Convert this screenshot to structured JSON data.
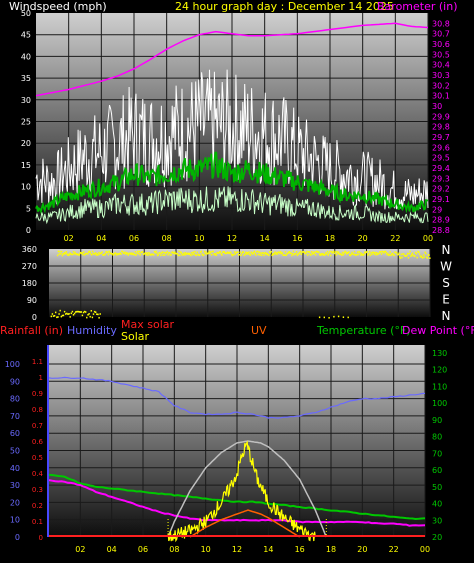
{
  "title": "24 hour graph day : December 14 2025",
  "colors": {
    "background": "#000000",
    "panel_top": "#c8c8c8",
    "panel_bottom": "#101010",
    "grid": "#1a1a1a",
    "wind_gust": "#ffffff",
    "wind_avg_dark": "#00b400",
    "wind_avg_light": "#c8ffc8",
    "barometer": "#ff00ff",
    "direction": "#ffff00",
    "rain": "#ff2020",
    "humidity": "#6a6aff",
    "max_solar": "#c0c0c0",
    "solar": "#ffff00",
    "uv": "#ff6000",
    "temperature": "#00c800",
    "dewpoint": "#ff00ff",
    "label_white": "#ffffff",
    "label_yellow": "#ffff00"
  },
  "chart_data": [
    {
      "type": "line",
      "id": "wind_baro",
      "title": "24 hour graph day : December 14 2025",
      "ylabel_left": "Windspeed (mph)",
      "ylabel_right": "Barometer (in)",
      "x_ticks": [
        "02",
        "04",
        "06",
        "08",
        "10",
        "12",
        "14",
        "16",
        "18",
        "20",
        "22",
        "00"
      ],
      "y_left_ticks": [
        "0",
        "5",
        "10",
        "15",
        "20",
        "25",
        "30",
        "35",
        "40",
        "45",
        "50"
      ],
      "y_left_range": [
        0,
        50
      ],
      "y_right_ticks": [
        "28.8",
        "28.9",
        "29",
        "29.1",
        "29.2",
        "29.3",
        "29.4",
        "29.5",
        "29.6",
        "29.7",
        "29.8",
        "29.9",
        "30",
        "30.1",
        "30.2",
        "30.3",
        "30.4",
        "30.5",
        "30.6",
        "30.7",
        "30.8"
      ],
      "y_right_range": [
        28.8,
        30.9
      ],
      "x_range_hours": [
        0,
        24
      ],
      "series": [
        {
          "color": "barometer",
          "axis": "right",
          "x": [
            0,
            1,
            2,
            3,
            4,
            5,
            6,
            7,
            8,
            9,
            10,
            11,
            12,
            13,
            14,
            15,
            16,
            17,
            18,
            19,
            20,
            21,
            22,
            23,
            24
          ],
          "y": [
            30.1,
            30.13,
            30.16,
            30.2,
            30.24,
            30.29,
            30.36,
            30.45,
            30.55,
            30.63,
            30.69,
            30.72,
            30.7,
            30.68,
            30.68,
            30.69,
            30.7,
            30.72,
            30.74,
            30.76,
            30.78,
            30.79,
            30.8,
            30.77,
            30.76
          ]
        },
        {
          "color": "wind_gust",
          "axis": "left",
          "x": [
            0,
            1,
            2,
            3,
            4,
            5,
            6,
            7,
            8,
            9,
            10,
            11,
            12,
            13,
            14,
            15,
            16,
            17,
            18,
            19,
            20,
            21,
            22,
            23,
            24
          ],
          "y": [
            12,
            11,
            14,
            17,
            18,
            20,
            22,
            21,
            22,
            23,
            24,
            24,
            24,
            23,
            22,
            21,
            18,
            16,
            14,
            13,
            12,
            11,
            9,
            8,
            9
          ]
        },
        {
          "color": "wind_avg_dark",
          "axis": "left",
          "x": [
            0,
            1,
            2,
            3,
            4,
            5,
            6,
            7,
            8,
            9,
            10,
            11,
            12,
            13,
            14,
            15,
            16,
            17,
            18,
            19,
            20,
            21,
            22,
            23,
            24
          ],
          "y": [
            5,
            6,
            8,
            9,
            10,
            11,
            13,
            12,
            13,
            14,
            14,
            15,
            13,
            14,
            13,
            12,
            11,
            10,
            9,
            8,
            8,
            7,
            6,
            5,
            6
          ]
        },
        {
          "color": "wind_avg_light",
          "axis": "left",
          "x": [
            0,
            1,
            2,
            3,
            4,
            5,
            6,
            7,
            8,
            9,
            10,
            11,
            12,
            13,
            14,
            15,
            16,
            17,
            18,
            19,
            20,
            21,
            22,
            23,
            24
          ],
          "y": [
            3,
            3,
            4,
            5,
            5,
            6,
            6,
            6,
            7,
            7,
            7,
            7,
            7,
            7,
            6,
            6,
            5,
            5,
            4,
            4,
            4,
            3,
            3,
            3,
            3
          ]
        }
      ]
    },
    {
      "type": "scatter",
      "id": "direction",
      "y_ticks": [
        "360",
        "270",
        "180",
        "90",
        "0"
      ],
      "y_range": [
        0,
        360
      ],
      "compass_labels": [
        "N",
        "W",
        "S",
        "E",
        "N"
      ],
      "x_range_hours": [
        0,
        24
      ],
      "series": [
        {
          "color": "direction",
          "band_main": [
            [
              0.5,
              330,
              352
            ],
            [
              24,
              310,
              352
            ]
          ],
          "band_low": [
            [
              0,
              0,
              40
            ],
            [
              3.2,
              0,
              40
            ],
            [
              17,
              0,
              8
            ],
            [
              19,
              0,
              8
            ]
          ]
        }
      ]
    },
    {
      "type": "line",
      "id": "rain_hum_solar_temp",
      "legend": [
        "Rainfall (in)",
        "Humidity",
        "Max solar",
        "Solar",
        "UV",
        "Temperature (°F)",
        "Dew Point (°F)"
      ],
      "y_rain_ticks": [
        "0",
        "0.1",
        "0.2",
        "0.3",
        "0.4",
        "0.5",
        "0.6",
        "0.7",
        "0.8",
        "0.9",
        "1",
        "1.1"
      ],
      "y_rain_range": [
        0,
        1.2
      ],
      "y_humidity_ticks": [
        "0",
        "10",
        "20",
        "30",
        "40",
        "50",
        "60",
        "70",
        "80",
        "90",
        "100"
      ],
      "y_humidity_range": [
        0,
        100
      ],
      "y_temp_ticks": [
        "20",
        "30",
        "40",
        "50",
        "60",
        "70",
        "80",
        "90",
        "100",
        "110",
        "120",
        "130"
      ],
      "y_temp_range": [
        20,
        130
      ],
      "x_ticks": [
        "02",
        "04",
        "06",
        "08",
        "10",
        "12",
        "14",
        "16",
        "18",
        "20",
        "22",
        "00"
      ],
      "x_range_hours": [
        0,
        24
      ],
      "series": [
        {
          "name": "Humidity",
          "color": "humidity",
          "x": [
            0,
            1,
            2,
            3,
            4,
            5,
            6,
            7,
            8,
            9,
            10,
            11,
            12,
            13,
            14,
            15,
            16,
            17,
            18,
            19,
            20,
            21,
            22,
            23,
            24
          ],
          "y": [
            92,
            92,
            92,
            91,
            90,
            88,
            86,
            84,
            76,
            72,
            71,
            71,
            72,
            71,
            69,
            69,
            70,
            72,
            75,
            78,
            80,
            80,
            81,
            82,
            83
          ]
        },
        {
          "name": "Temperature (°F)",
          "color": "temperature",
          "x": [
            0,
            1,
            2,
            3,
            4,
            5,
            6,
            7,
            8,
            9,
            10,
            11,
            12,
            13,
            14,
            15,
            16,
            17,
            18,
            19,
            20,
            21,
            22,
            23,
            24
          ],
          "y": [
            57,
            56,
            52,
            50,
            49,
            48,
            47,
            46,
            45,
            44,
            43,
            42,
            41,
            41,
            40,
            39,
            38,
            37,
            36,
            35,
            34,
            33,
            32,
            31,
            31
          ]
        },
        {
          "name": "Dew Point (°F)",
          "color": "dewpoint",
          "x": [
            0,
            1,
            2,
            3,
            4,
            5,
            6,
            7,
            8,
            9,
            10,
            11,
            12,
            13,
            14,
            15,
            16,
            17,
            18,
            19,
            20,
            21,
            22,
            23,
            24
          ],
          "y": [
            54,
            53,
            51,
            47,
            44,
            41,
            38,
            35,
            33,
            31,
            30,
            30,
            30,
            30,
            30,
            30,
            29,
            29,
            29,
            29,
            29,
            28,
            28,
            27,
            27
          ]
        },
        {
          "name": "Max solar",
          "color": "max_solar",
          "x": [
            7.6,
            8,
            9,
            10,
            11,
            12,
            12.7,
            13.5,
            14,
            15,
            16,
            17,
            17.7
          ],
          "y_pct": [
            0,
            8,
            24,
            36,
            44,
            49,
            50,
            49,
            47,
            40,
            30,
            14,
            0
          ]
        },
        {
          "name": "Solar",
          "color": "solar",
          "x": [
            7.6,
            9,
            10,
            11,
            11.5,
            12,
            12.3,
            12.6,
            12.8,
            13,
            13.3,
            13.6,
            14,
            15,
            16,
            17
          ],
          "y_pct": [
            0,
            3,
            8,
            18,
            25,
            33,
            42,
            48,
            44,
            38,
            30,
            25,
            18,
            10,
            4,
            0
          ]
        },
        {
          "name": "UV",
          "color": "uv",
          "x": [
            9,
            10,
            11,
            12,
            12.7,
            13.5,
            14,
            15,
            16
          ],
          "y_pct": [
            0,
            5,
            9,
            12,
            14,
            12,
            10,
            5,
            0
          ]
        },
        {
          "name": "Rainfall (in)",
          "color": "rain",
          "x": [
            0,
            24
          ],
          "y": [
            0,
            0
          ]
        }
      ]
    }
  ]
}
